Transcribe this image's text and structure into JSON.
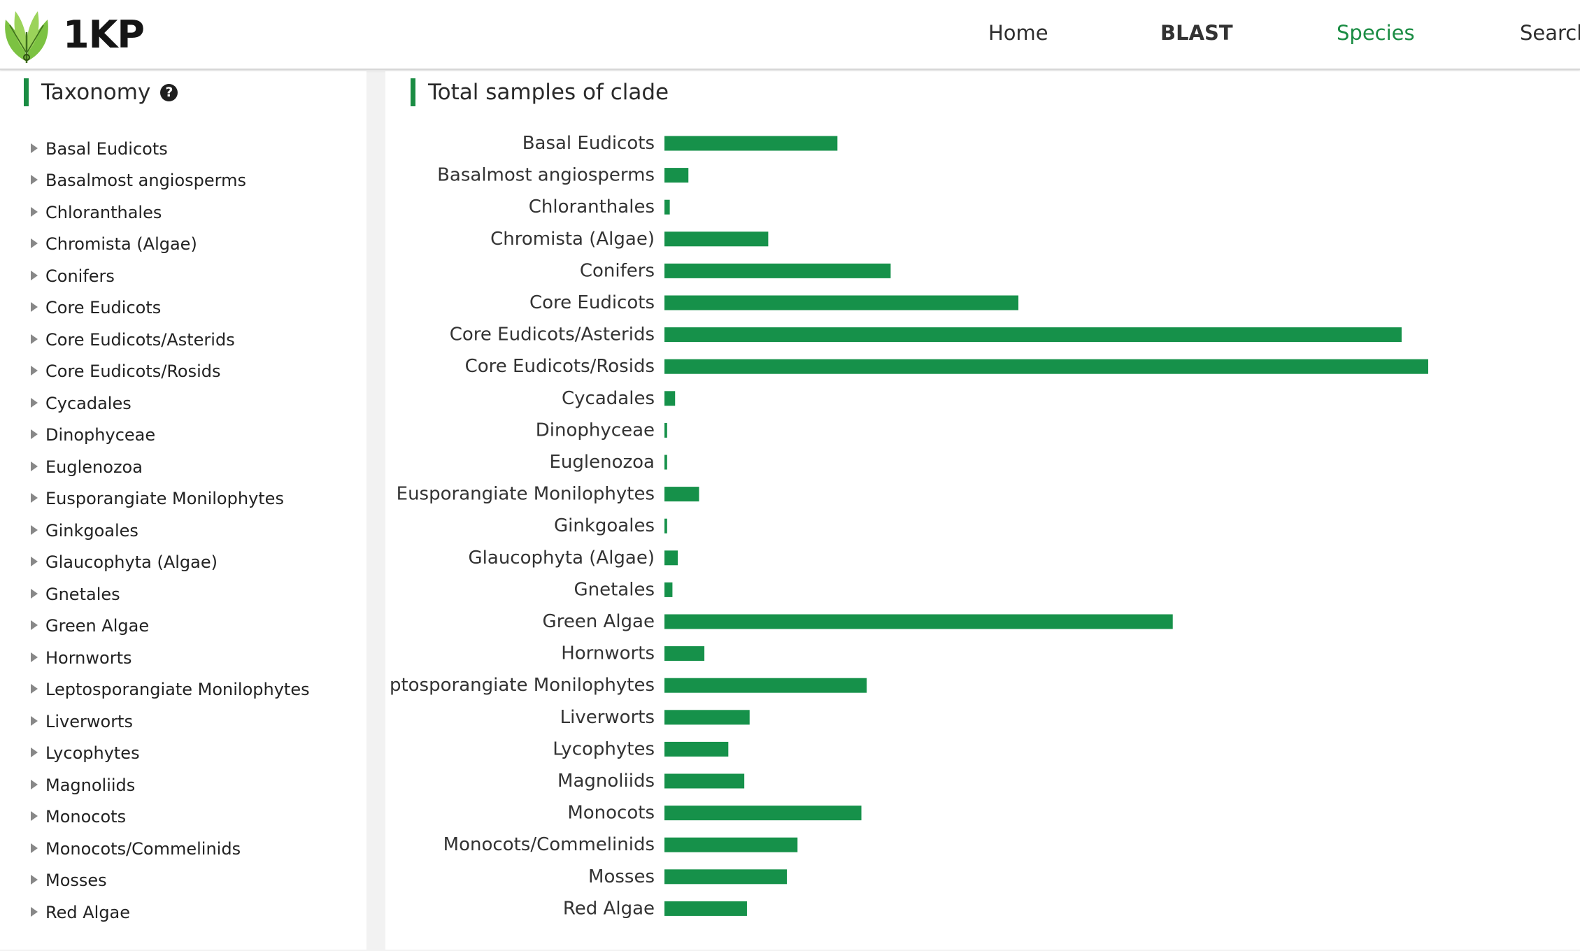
{
  "header": {
    "logo_text": "1KP",
    "nav": [
      {
        "label": "Home"
      },
      {
        "label": "BLAST"
      },
      {
        "label": "Species"
      },
      {
        "label": "Search"
      }
    ]
  },
  "sidebar": {
    "title": "Taxonomy",
    "help_icon": "question-circle-icon",
    "items": [
      "Basal Eudicots",
      "Basalmost angiosperms",
      "Chloranthales",
      "Chromista (Algae)",
      "Conifers",
      "Core Eudicots",
      "Core Eudicots/Asterids",
      "Core Eudicots/Rosids",
      "Cycadales",
      "Dinophyceae",
      "Euglenozoa",
      "Eusporangiate Monilophytes",
      "Ginkgoales",
      "Glaucophyta (Algae)",
      "Gnetales",
      "Green Algae",
      "Hornworts",
      "Leptosporangiate Monilophytes",
      "Liverworts",
      "Lycophytes",
      "Magnoliids",
      "Monocots",
      "Monocots/Commelinids",
      "Mosses",
      "Red Algae"
    ]
  },
  "main": {
    "title": "Total samples of clade"
  },
  "colors": {
    "accent": "#1a8c43",
    "bar": "#16914a"
  },
  "chart_data": {
    "type": "bar",
    "orientation": "horizontal",
    "title": "",
    "categories": [
      "Basal Eudicots",
      "Basalmost angiosperms",
      "Chloranthales",
      "Chromista (Algae)",
      "Conifers",
      "Core Eudicots",
      "Core Eudicots/Asterids",
      "Core Eudicots/Rosids",
      "Cycadales",
      "Dinophyceae",
      "Euglenozoa",
      "Eusporangiate Monilophytes",
      "Ginkgoales",
      "Glaucophyta (Algae)",
      "Gnetales",
      "Green Algae",
      "Hornworts",
      "ptosporangiate Monilophytes",
      "Liverworts",
      "Lycophytes",
      "Magnoliids",
      "Monocots",
      "Monocots/Commelinids",
      "Mosses",
      "Red Algae"
    ],
    "values": [
      65,
      9,
      2,
      39,
      85,
      133,
      277,
      287,
      4,
      1,
      1,
      13,
      1,
      5,
      3,
      191,
      15,
      76,
      32,
      24,
      30,
      74,
      50,
      46,
      31
    ],
    "xlim": [
      0,
      287
    ],
    "grid": false,
    "legend": "none"
  }
}
